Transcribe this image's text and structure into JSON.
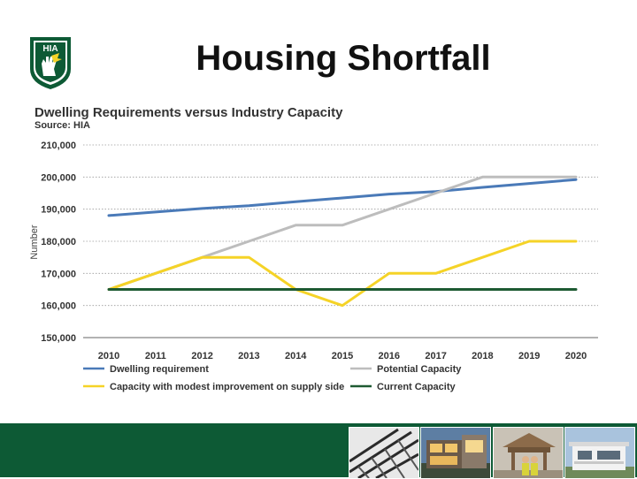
{
  "slide": {
    "title": "Housing Shortfall",
    "logo_text": "HIA"
  },
  "colors": {
    "brand_green": "#0d5a35",
    "dwelling": "#4a7ab8",
    "potential": "#bdbdbd",
    "modest": "#f5d327",
    "current": "#1e5a32"
  },
  "chart_data": {
    "type": "line",
    "title": "Dwelling Requirements versus Industry Capacity",
    "subtitle": "Source: HIA",
    "xlabel": "",
    "ylabel": "Number",
    "x": [
      "2010",
      "2011",
      "2012",
      "2013",
      "2014",
      "2015",
      "2016",
      "2017",
      "2018",
      "2019",
      "2020"
    ],
    "ylim": [
      150000,
      210000
    ],
    "yticks": [
      150000,
      160000,
      170000,
      180000,
      190000,
      200000,
      210000
    ],
    "ytick_labels": [
      "150,000",
      "160,000",
      "170,000",
      "180,000",
      "190,000",
      "200,000",
      "210,000"
    ],
    "grid": true,
    "legend_position": "bottom",
    "series": [
      {
        "name": "Dwelling requirement",
        "color": "#4a7ab8",
        "values": [
          188000,
          189100,
          190200,
          191100,
          192300,
          193500,
          194700,
          195500,
          196800,
          198000,
          199200
        ]
      },
      {
        "name": "Potential Capacity",
        "color": "#bdbdbd",
        "values": [
          165000,
          170000,
          175000,
          180000,
          185000,
          185000,
          190000,
          195000,
          200000,
          200000,
          200000
        ]
      },
      {
        "name": "Capacity with modest improvement on supply side",
        "color": "#f5d327",
        "values": [
          165000,
          170000,
          175000,
          175000,
          165000,
          160000,
          170000,
          170000,
          175000,
          180000,
          180000
        ]
      },
      {
        "name": "Current Capacity",
        "color": "#1e5a32",
        "values": [
          165000,
          165000,
          165000,
          165000,
          165000,
          165000,
          165000,
          165000,
          165000,
          165000,
          165000
        ]
      }
    ]
  },
  "footer": {
    "photos": [
      "roof-framing-photo",
      "lit-modern-house-photo",
      "builders-on-site-photo",
      "white-house-photo"
    ]
  }
}
